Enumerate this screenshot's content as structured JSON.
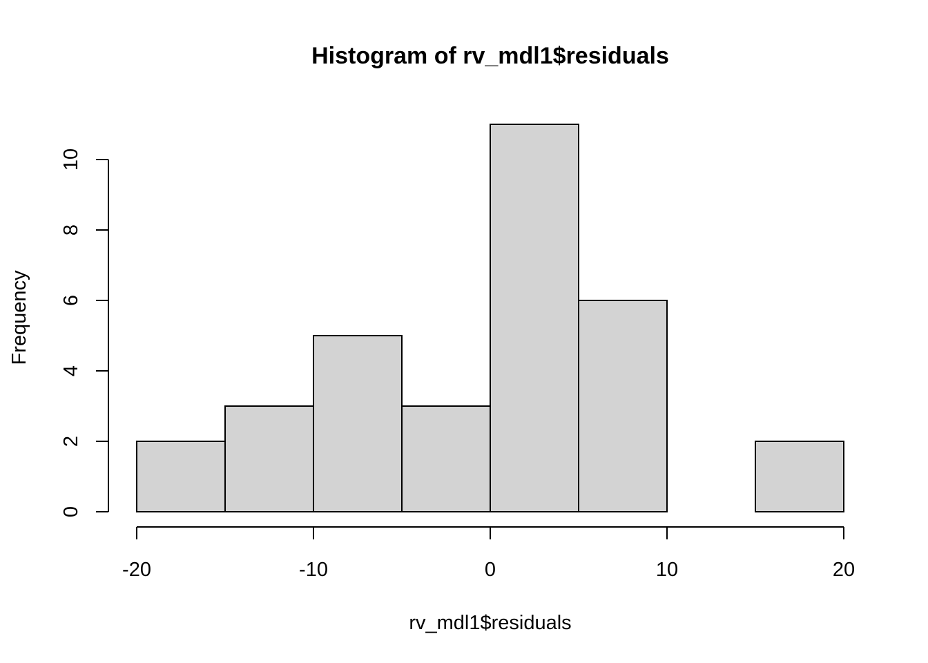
{
  "chart_data": {
    "type": "bar",
    "subtype": "histogram",
    "title": "Histogram of rv_mdl1$residuals",
    "xlabel": "rv_mdl1$residuals",
    "ylabel": "Frequency",
    "bins": [
      {
        "x0": -20,
        "x1": -15,
        "count": 2
      },
      {
        "x0": -15,
        "x1": -10,
        "count": 3
      },
      {
        "x0": -10,
        "x1": -5,
        "count": 5
      },
      {
        "x0": -5,
        "x1": 0,
        "count": 3
      },
      {
        "x0": 0,
        "x1": 5,
        "count": 11
      },
      {
        "x0": 5,
        "x1": 10,
        "count": 6
      },
      {
        "x0": 10,
        "x1": 15,
        "count": 0
      },
      {
        "x0": 15,
        "x1": 20,
        "count": 2
      }
    ],
    "xticks": [
      -20,
      -10,
      0,
      10,
      20
    ],
    "yticks": [
      0,
      2,
      4,
      6,
      8,
      10
    ],
    "xlim": [
      -20,
      20
    ],
    "ylim": [
      0,
      11
    ],
    "grid": false,
    "legend": "none",
    "colors": {
      "bar_fill": "#d3d3d3",
      "bar_stroke": "#000000"
    }
  }
}
